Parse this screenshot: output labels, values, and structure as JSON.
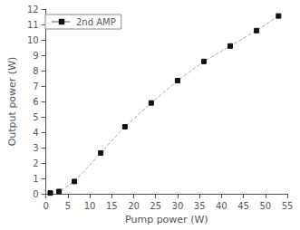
{
  "chart_data": {
    "type": "line",
    "x": [
      1,
      3,
      6.5,
      12.5,
      18,
      24,
      30,
      36,
      42,
      48,
      53
    ],
    "series": [
      {
        "name": "2nd AMP",
        "color": "#aaaaaa",
        "colors": [
          "#111111",
          "#111111",
          "#111111",
          "#111111",
          "#111111",
          "#111111",
          "#111111",
          "#111111",
          "#111111",
          "#111111",
          "#111111"
        ],
        "marker": "square",
        "line_style": "dashed",
        "values": [
          0.05,
          0.15,
          0.8,
          2.65,
          4.35,
          5.9,
          7.35,
          8.6,
          9.6,
          10.6,
          11.55
        ]
      }
    ],
    "xlabel": "Pump power (W)",
    "ylabel": "Output power (W)",
    "xlim": [
      0,
      55
    ],
    "ylim": [
      0,
      12
    ],
    "xticks": [
      0,
      5,
      10,
      15,
      20,
      25,
      30,
      35,
      40,
      45,
      50,
      55
    ],
    "yticks": [
      0,
      1,
      2,
      3,
      4,
      5,
      6,
      7,
      8,
      9,
      10,
      11,
      12
    ],
    "grid": false,
    "legend": "upper left"
  }
}
